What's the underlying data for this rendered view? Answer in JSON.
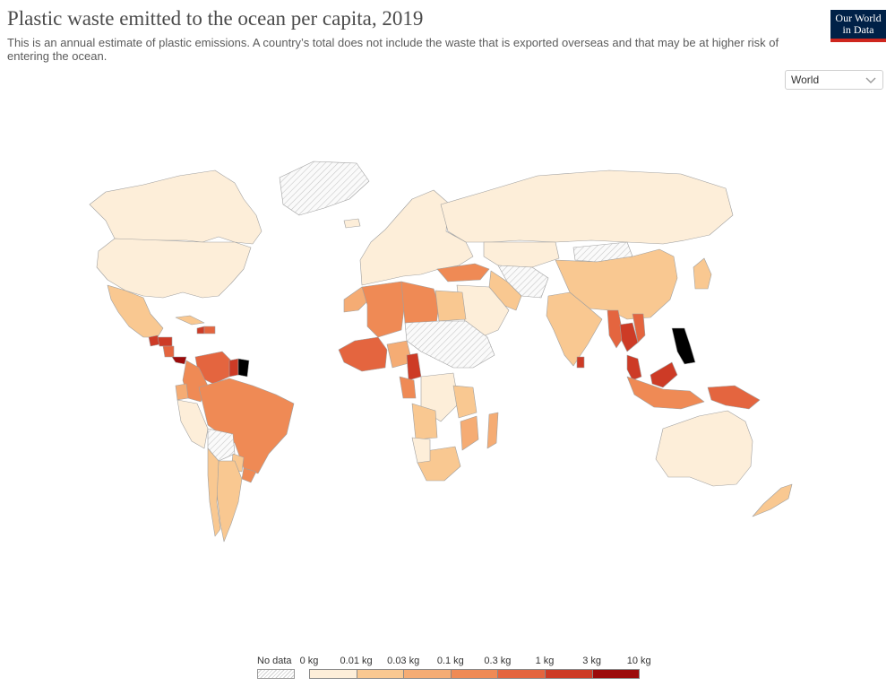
{
  "header": {
    "title": "Plastic waste emitted to the ocean per capita, 2019",
    "subtitle": "This is an annual estimate of plastic emissions. A country’s total does not include the waste that is exported overseas and that may be at higher risk of entering the ocean."
  },
  "logo": {
    "line1": "Our World",
    "line2": "in Data"
  },
  "entity_selector": {
    "value": "World",
    "icon": "chevron-down-icon"
  },
  "map": {
    "scale_unit": "kg per capita per year",
    "no_data_color": "hatched-gray",
    "regions": [
      {
        "name": "Canada",
        "bin": 0
      },
      {
        "name": "United States",
        "bin": 0
      },
      {
        "name": "Mexico",
        "bin": 1
      },
      {
        "name": "Guatemala",
        "bin": 5
      },
      {
        "name": "Honduras",
        "bin": 5
      },
      {
        "name": "Nicaragua",
        "bin": 4
      },
      {
        "name": "Cuba",
        "bin": 1
      },
      {
        "name": "Haiti",
        "bin": 5
      },
      {
        "name": "Dominican Republic",
        "bin": 4
      },
      {
        "name": "Panama",
        "bin": 6
      },
      {
        "name": "Venezuela",
        "bin": 4
      },
      {
        "name": "Guyana",
        "bin": 5
      },
      {
        "name": "Suriname",
        "bin": 7
      },
      {
        "name": "Colombia",
        "bin": 3
      },
      {
        "name": "Ecuador",
        "bin": 2
      },
      {
        "name": "Peru",
        "bin": 0
      },
      {
        "name": "Brazil",
        "bin": 3
      },
      {
        "name": "Bolivia",
        "bin": "no-data"
      },
      {
        "name": "Paraguay",
        "bin": 1
      },
      {
        "name": "Uruguay",
        "bin": 3
      },
      {
        "name": "Argentina",
        "bin": 1
      },
      {
        "name": "Chile",
        "bin": 1
      },
      {
        "name": "Greenland",
        "bin": "no-data"
      },
      {
        "name": "Iceland",
        "bin": 0
      },
      {
        "name": "Europe",
        "bin": 0
      },
      {
        "name": "Turkey",
        "bin": 3
      },
      {
        "name": "Russia",
        "bin": 0
      },
      {
        "name": "Mongolia",
        "bin": "no-data"
      },
      {
        "name": "Kazakhstan",
        "bin": 0
      },
      {
        "name": "Central Asia",
        "bin": "no-data"
      },
      {
        "name": "China",
        "bin": 1
      },
      {
        "name": "Japan",
        "bin": 1
      },
      {
        "name": "Iran",
        "bin": 1
      },
      {
        "name": "Saudi Arabia",
        "bin": 0
      },
      {
        "name": "India",
        "bin": 1
      },
      {
        "name": "Sri Lanka",
        "bin": 5
      },
      {
        "name": "Myanmar",
        "bin": 4
      },
      {
        "name": "Thailand",
        "bin": 5
      },
      {
        "name": "Vietnam",
        "bin": 4
      },
      {
        "name": "Philippines",
        "bin": 7
      },
      {
        "name": "Malaysia",
        "bin": 5
      },
      {
        "name": "Indonesia",
        "bin": 3
      },
      {
        "name": "Papua New Guinea",
        "bin": 4
      },
      {
        "name": "Australia",
        "bin": 0
      },
      {
        "name": "New Zealand",
        "bin": 1
      },
      {
        "name": "Morocco",
        "bin": 2
      },
      {
        "name": "Algeria",
        "bin": 3
      },
      {
        "name": "Libya",
        "bin": 3
      },
      {
        "name": "Egypt",
        "bin": 1
      },
      {
        "name": "West Africa",
        "bin": 4
      },
      {
        "name": "Nigeria",
        "bin": 2
      },
      {
        "name": "Cameroon",
        "bin": 5
      },
      {
        "name": "Gabon",
        "bin": 3
      },
      {
        "name": "Sahel",
        "bin": "no-data"
      },
      {
        "name": "DR Congo",
        "bin": 0
      },
      {
        "name": "Angola",
        "bin": 1
      },
      {
        "name": "Tanzania",
        "bin": 1
      },
      {
        "name": "Mozambique",
        "bin": 2
      },
      {
        "name": "Madagascar",
        "bin": 2
      },
      {
        "name": "South Africa",
        "bin": 1
      },
      {
        "name": "Namibia",
        "bin": 0
      }
    ]
  },
  "legend": {
    "no_data_label": "No data",
    "bin_colors": [
      "#fdeed9",
      "#f9c891",
      "#f5ac74",
      "#ef8a55",
      "#e4653f",
      "#cd3b26",
      "#9c0b0b"
    ],
    "labels": [
      "0 kg",
      "0.01 kg",
      "0.03 kg",
      "0.1 kg",
      "0.3 kg",
      "1 kg",
      "3 kg",
      "10 kg"
    ]
  }
}
